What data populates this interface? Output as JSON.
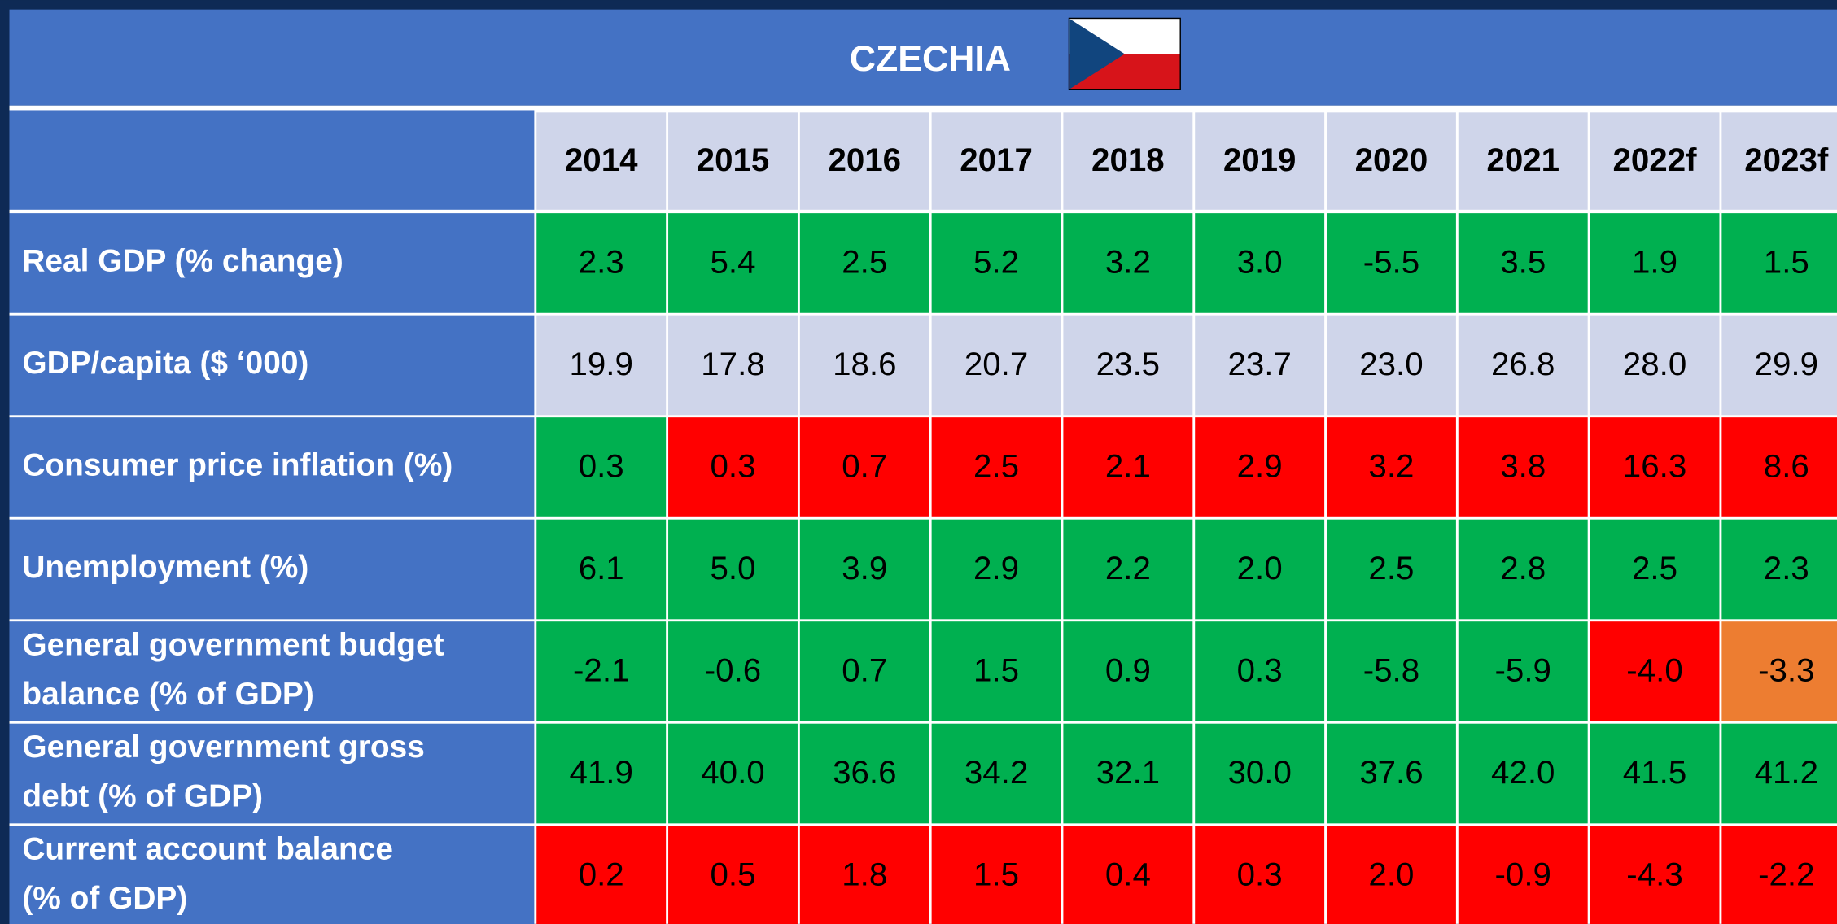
{
  "header": {
    "title": "CZECHIA"
  },
  "table": {
    "palette": {
      "green": "#00b050",
      "red": "#ff0000",
      "orange": "#ed7d31",
      "light": "#cfd5ea"
    },
    "columns": [
      "2014",
      "2015",
      "2016",
      "2017",
      "2018",
      "2019",
      "2020",
      "2021",
      "2022f",
      "2023f"
    ],
    "rows": [
      {
        "label": [
          "Real GDP (% change)"
        ],
        "values": [
          "2.3",
          "5.4",
          "2.5",
          "5.2",
          "3.2",
          "3.0",
          "-5.5",
          "3.5",
          "1.9",
          "1.5"
        ],
        "colors": [
          "green",
          "green",
          "green",
          "green",
          "green",
          "green",
          "green",
          "green",
          "green",
          "green"
        ]
      },
      {
        "label": [
          "GDP/capita ($ ‘000)"
        ],
        "values": [
          "19.9",
          "17.8",
          "18.6",
          "20.7",
          "23.5",
          "23.7",
          "23.0",
          "26.8",
          "28.0",
          "29.9"
        ],
        "colors": [
          "light",
          "light",
          "light",
          "light",
          "light",
          "light",
          "light",
          "light",
          "light",
          "light"
        ]
      },
      {
        "label": [
          "Consumer price inflation (%)"
        ],
        "values": [
          "0.3",
          "0.3",
          "0.7",
          "2.5",
          "2.1",
          "2.9",
          "3.2",
          "3.8",
          "16.3",
          "8.6"
        ],
        "colors": [
          "green",
          "red",
          "red",
          "red",
          "red",
          "red",
          "red",
          "red",
          "red",
          "red"
        ]
      },
      {
        "label": [
          "Unemployment (%)"
        ],
        "values": [
          "6.1",
          "5.0",
          "3.9",
          "2.9",
          "2.2",
          "2.0",
          "2.5",
          "2.8",
          "2.5",
          "2.3"
        ],
        "colors": [
          "green",
          "green",
          "green",
          "green",
          "green",
          "green",
          "green",
          "green",
          "green",
          "green"
        ]
      },
      {
        "label": [
          "General government budget",
          "balance (% of GDP)"
        ],
        "values": [
          "-2.1",
          "-0.6",
          "0.7",
          "1.5",
          "0.9",
          "0.3",
          "-5.8",
          "-5.9",
          "-4.0",
          "-3.3"
        ],
        "colors": [
          "green",
          "green",
          "green",
          "green",
          "green",
          "green",
          "green",
          "green",
          "red",
          "orange"
        ]
      },
      {
        "label": [
          "General government gross",
          "debt (% of GDP)"
        ],
        "values": [
          "41.9",
          "40.0",
          "36.6",
          "34.2",
          "32.1",
          "30.0",
          "37.6",
          "42.0",
          "41.5",
          "41.2"
        ],
        "colors": [
          "green",
          "green",
          "green",
          "green",
          "green",
          "green",
          "green",
          "green",
          "green",
          "green"
        ]
      },
      {
        "label": [
          "Current account balance",
          "(% of GDP)"
        ],
        "values": [
          "0.2",
          "0.5",
          "1.8",
          "1.5",
          "0.4",
          "0.3",
          "2.0",
          "-0.9",
          "-4.3",
          "-2.2"
        ],
        "colors": [
          "red",
          "red",
          "red",
          "red",
          "red",
          "red",
          "red",
          "red",
          "red",
          "red"
        ]
      }
    ]
  }
}
